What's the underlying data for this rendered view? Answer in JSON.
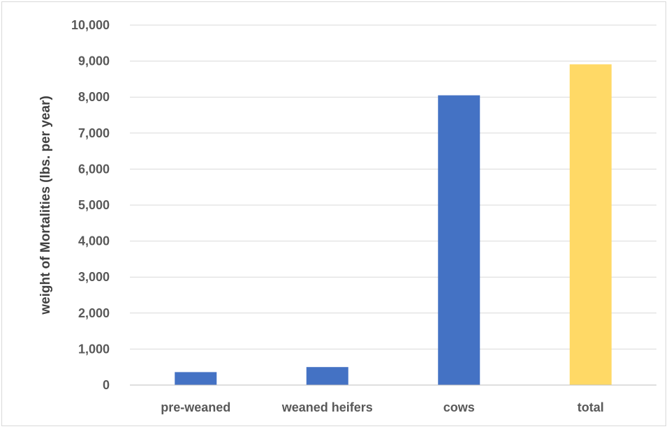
{
  "chart_data": {
    "type": "bar",
    "title": "",
    "xlabel": "",
    "ylabel": "weight of Mortalities (lbs. per year)",
    "categories": [
      "pre-weaned",
      "weaned heifers",
      "cows",
      "total"
    ],
    "values": [
      360,
      500,
      8050,
      8910
    ],
    "bar_colors": [
      "#4472C4",
      "#4472C4",
      "#4472C4",
      "#FFD966"
    ],
    "ylim": [
      0,
      10000
    ],
    "yticks": [
      0,
      1000,
      2000,
      3000,
      4000,
      5000,
      6000,
      7000,
      8000,
      9000,
      10000
    ],
    "ytick_labels": [
      "0",
      "1,000",
      "2,000",
      "3,000",
      "4,000",
      "5,000",
      "6,000",
      "7,000",
      "8,000",
      "9,000",
      "10,000"
    ],
    "grid": true,
    "legend": "none"
  },
  "colors": {
    "grid": "#d9d9d9",
    "axis": "#bfbfbf",
    "tick_text": "#595959",
    "axis_title": "#404040",
    "frame": "#d9d9d9"
  }
}
